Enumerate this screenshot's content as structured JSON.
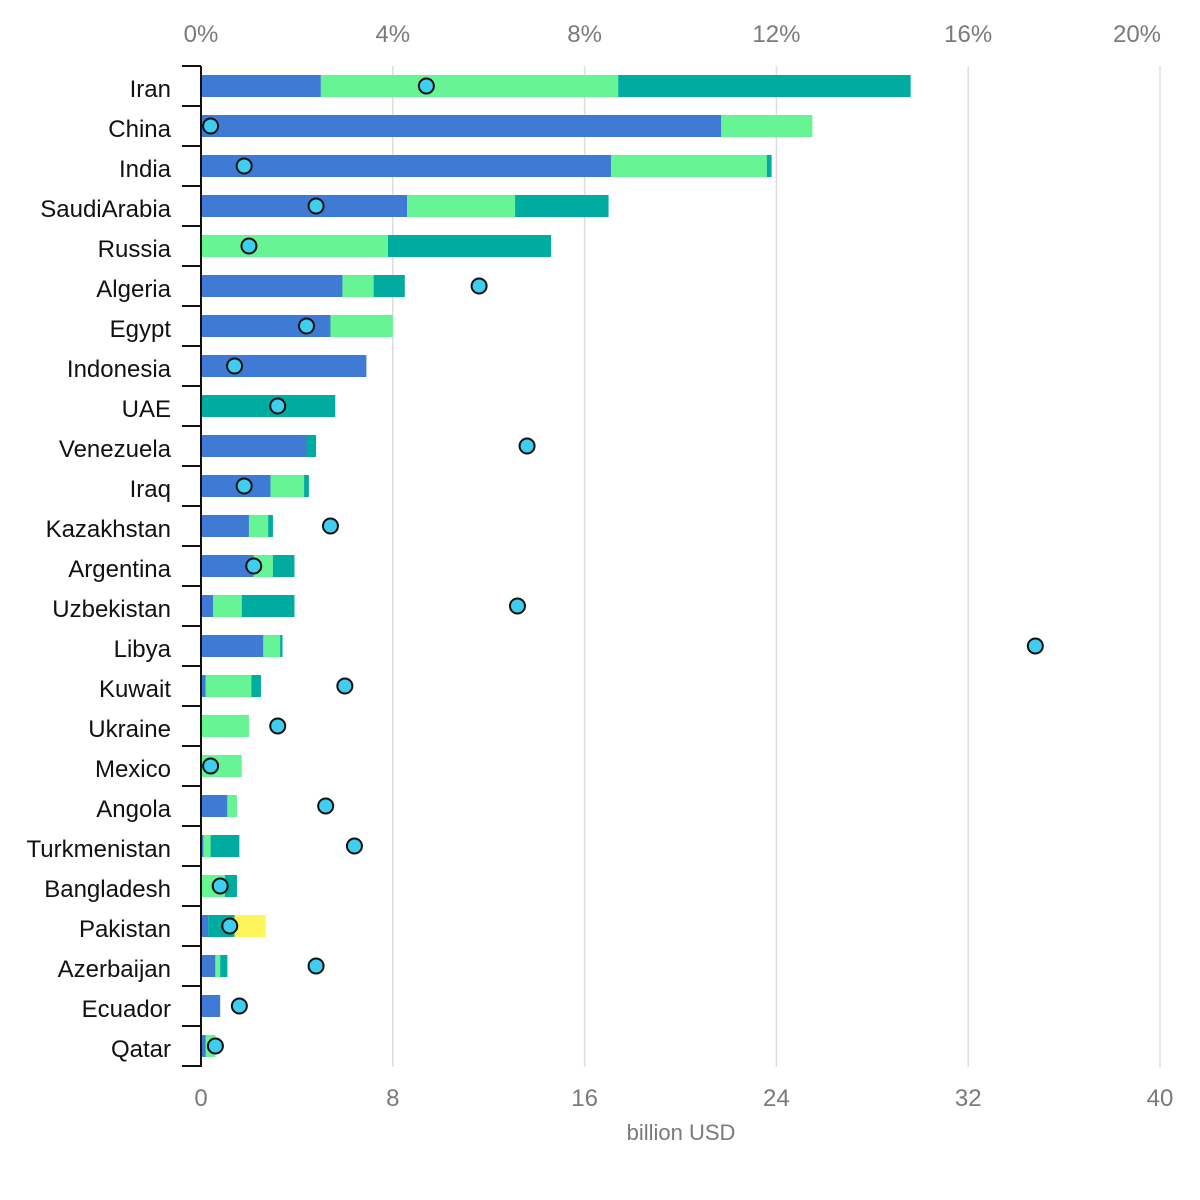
{
  "chart_data": {
    "type": "bar",
    "orientation": "horizontal",
    "stacked": true,
    "xlabel": "billion USD",
    "xlim": [
      0,
      40
    ],
    "x_ticks": [
      "0",
      "8",
      "16",
      "24",
      "32",
      "40"
    ],
    "top_axis": {
      "range": [
        0,
        20
      ],
      "ticks": [
        "0%",
        "4%",
        "8%",
        "12%",
        "16%",
        "20%"
      ]
    },
    "grid": true,
    "legend": "none",
    "categories": [
      "Iran",
      "China",
      "India",
      "SaudiArabia",
      "Russia",
      "Algeria",
      "Egypt",
      "Indonesia",
      "UAE",
      "Venezuela",
      "Iraq",
      "Kazakhstan",
      "Argentina",
      "Uzbekistan",
      "Libya",
      "Kuwait",
      "Ukraine",
      "Mexico",
      "Angola",
      "Turkmenistan",
      "Bangladesh",
      "Pakistan",
      "Azerbaijan",
      "Ecuador",
      "Qatar"
    ],
    "series": [
      {
        "color": "#3f7bd4",
        "values": [
          5.0,
          21.7,
          17.1,
          8.6,
          0.0,
          5.9,
          5.4,
          6.9,
          0.0,
          4.4,
          2.9,
          2.0,
          2.2,
          0.5,
          2.6,
          0.2,
          0.0,
          0.0,
          1.1,
          0.1,
          0.0,
          0.3,
          0.6,
          0.8,
          0.2
        ]
      },
      {
        "color": "#66f494",
        "values": [
          12.4,
          3.8,
          6.5,
          4.5,
          7.8,
          1.3,
          2.6,
          0.0,
          0.0,
          0.0,
          1.4,
          0.8,
          0.8,
          1.2,
          0.7,
          1.9,
          2.0,
          1.7,
          0.4,
          0.3,
          1.0,
          0.0,
          0.2,
          0.0,
          0.4
        ]
      },
      {
        "color": "#00ab9f",
        "values": [
          12.2,
          0.0,
          0.2,
          3.9,
          6.8,
          1.3,
          0.0,
          0.0,
          5.6,
          0.4,
          0.2,
          0.2,
          0.9,
          2.2,
          0.1,
          0.4,
          0.0,
          0.0,
          0.0,
          1.2,
          0.5,
          1.1,
          0.3,
          0.0,
          0.0
        ]
      },
      {
        "color": "#fff55a",
        "values": [
          0,
          0,
          0,
          0,
          0,
          0,
          0,
          0,
          0,
          0,
          0,
          0,
          0,
          0,
          0,
          0,
          0,
          0,
          0,
          0,
          0,
          1.3,
          0,
          0,
          0
        ]
      }
    ],
    "markers": {
      "color": "#3fcdf0",
      "axis": "top",
      "values": [
        4.7,
        0.2,
        0.9,
        2.4,
        1.0,
        5.8,
        2.2,
        0.7,
        1.6,
        6.8,
        0.9,
        2.7,
        1.1,
        6.6,
        17.4,
        3.0,
        1.6,
        0.2,
        2.6,
        3.2,
        0.4,
        0.6,
        2.4,
        0.8,
        0.3
      ]
    }
  }
}
